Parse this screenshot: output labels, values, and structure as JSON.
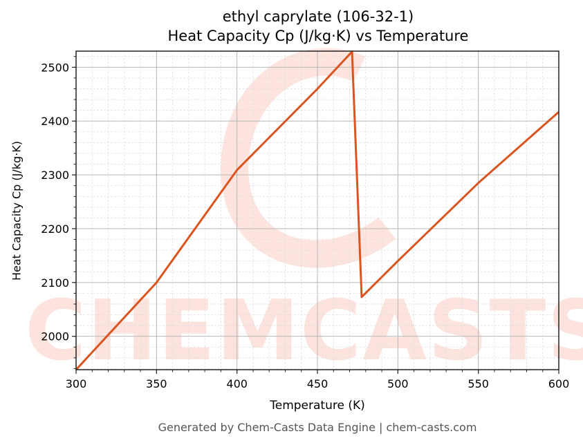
{
  "chart_data": {
    "type": "line",
    "title": "ethyl caprylate (106-32-1)",
    "subtitle": "Heat Capacity Cp (J/kg·K) vs Temperature",
    "xlabel": "Temperature (K)",
    "ylabel": "Heat Capacity Cp (J/kg·K)",
    "xlim": [
      300,
      600
    ],
    "ylim": [
      1938,
      2530
    ],
    "x_ticks": [
      300,
      350,
      400,
      450,
      500,
      550,
      600
    ],
    "y_ticks": [
      2000,
      2100,
      2200,
      2300,
      2400,
      2500
    ],
    "grid": true,
    "legend": null,
    "series": [
      {
        "name": "Cp",
        "color": "#d9541e",
        "x": [
          300,
          350,
          400,
          450,
          471.5,
          477.5,
          500,
          550,
          600
        ],
        "values": [
          1938,
          2100,
          2309,
          2460,
          2529,
          2073,
          2140,
          2285,
          2417
        ]
      }
    ],
    "watermark": "CHEMCASTS"
  },
  "footer": "Generated by Chem-Casts Data Engine | chem-casts.com"
}
